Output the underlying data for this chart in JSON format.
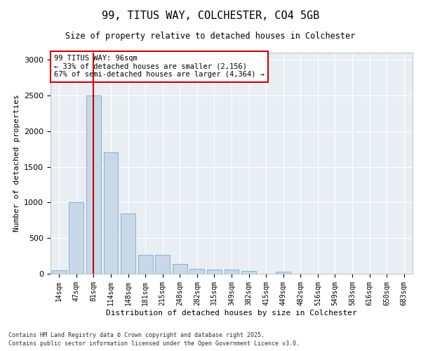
{
  "title1": "99, TITUS WAY, COLCHESTER, CO4 5GB",
  "title2": "Size of property relative to detached houses in Colchester",
  "xlabel": "Distribution of detached houses by size in Colchester",
  "ylabel": "Number of detached properties",
  "categories": [
    "14sqm",
    "47sqm",
    "81sqm",
    "114sqm",
    "148sqm",
    "181sqm",
    "215sqm",
    "248sqm",
    "282sqm",
    "315sqm",
    "349sqm",
    "382sqm",
    "415sqm",
    "449sqm",
    "482sqm",
    "516sqm",
    "549sqm",
    "583sqm",
    "616sqm",
    "650sqm",
    "683sqm"
  ],
  "values": [
    50,
    1000,
    2500,
    1700,
    850,
    270,
    270,
    140,
    70,
    55,
    55,
    40,
    0,
    30,
    0,
    0,
    0,
    0,
    0,
    0,
    0
  ],
  "bar_color": "#c8d8e8",
  "bar_edgecolor": "#7aabcc",
  "vline_x_index": 2,
  "vline_color": "#cc0000",
  "vline_linewidth": 1.5,
  "annotation_box_text": "99 TITUS WAY: 96sqm\n← 33% of detached houses are smaller (2,156)\n67% of semi-detached houses are larger (4,364) →",
  "box_edgecolor": "#cc0000",
  "ylim": [
    0,
    3100
  ],
  "yticks": [
    0,
    500,
    1000,
    1500,
    2000,
    2500,
    3000
  ],
  "bg_color": "#e8eef4",
  "grid_color": "#ffffff",
  "footer1": "Contains HM Land Registry data © Crown copyright and database right 2025.",
  "footer2": "Contains public sector information licensed under the Open Government Licence v3.0."
}
